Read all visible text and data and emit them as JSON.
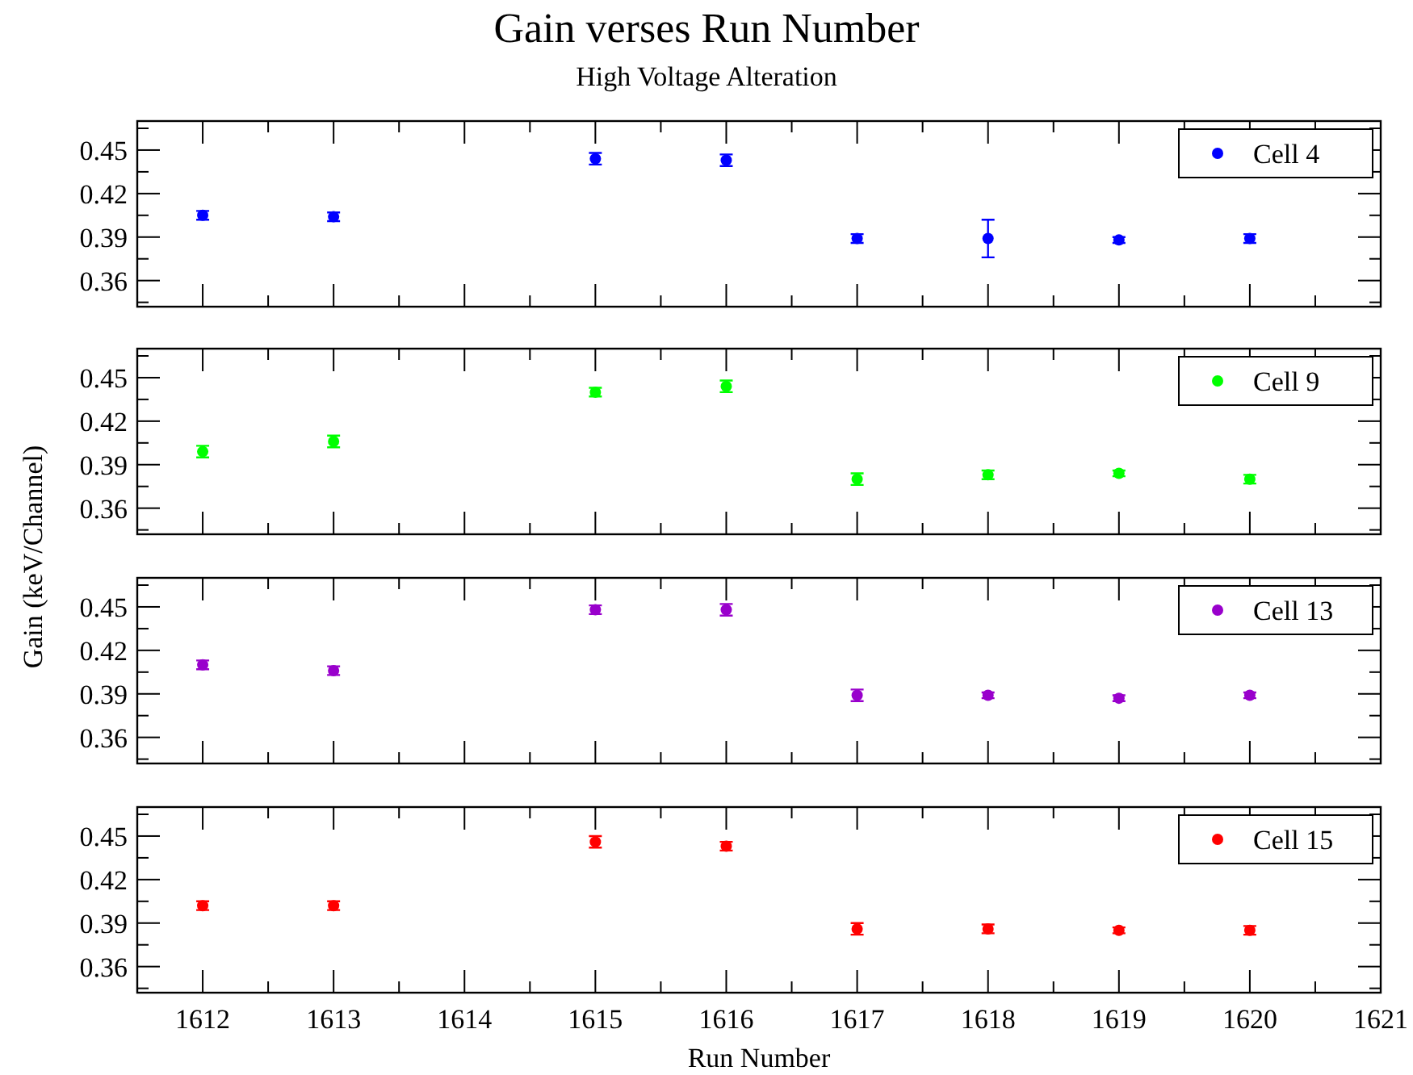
{
  "chart_data": [
    {
      "type": "scatter",
      "title": "Gain verses Run Number",
      "subtitle": "High Voltage Alteration",
      "x": [
        1612,
        1613,
        1615,
        1616,
        1617,
        1618,
        1619,
        1620
      ],
      "xlim": [
        1611.5,
        1621
      ],
      "xticks": [
        1612,
        1613,
        1614,
        1615,
        1616,
        1617,
        1618,
        1619,
        1620,
        1621
      ],
      "ylim": [
        0.342,
        0.47
      ],
      "yticks": [
        0.36,
        0.39,
        0.42,
        0.45
      ],
      "tick_labels": "y",
      "legend": "top right",
      "marker": "circle",
      "series": [
        {
          "name": "Cell 4",
          "color": "#0000ff",
          "values": [
            0.405,
            0.404,
            0.444,
            0.443,
            0.389,
            0.389,
            0.388,
            0.389
          ],
          "errors": [
            0.003,
            0.003,
            0.004,
            0.004,
            0.003,
            0.013,
            0.002,
            0.003
          ]
        }
      ]
    },
    {
      "type": "scatter",
      "x": [
        1612,
        1613,
        1615,
        1616,
        1617,
        1618,
        1619,
        1620
      ],
      "xlim": [
        1611.5,
        1621
      ],
      "xticks": [
        1612,
        1613,
        1614,
        1615,
        1616,
        1617,
        1618,
        1619,
        1620,
        1621
      ],
      "ylim": [
        0.342,
        0.47
      ],
      "yticks": [
        0.36,
        0.39,
        0.42,
        0.45
      ],
      "tick_labels": "y",
      "legend": "top right",
      "marker": "circle",
      "series": [
        {
          "name": "Cell 9",
          "color": "#00ff00",
          "values": [
            0.399,
            0.406,
            0.44,
            0.444,
            0.38,
            0.383,
            0.384,
            0.38
          ],
          "errors": [
            0.004,
            0.004,
            0.003,
            0.004,
            0.004,
            0.003,
            0.002,
            0.003
          ]
        }
      ]
    },
    {
      "type": "scatter",
      "ylabel": "Gain (keV/Channel)",
      "x": [
        1612,
        1613,
        1615,
        1616,
        1617,
        1618,
        1619,
        1620
      ],
      "xlim": [
        1611.5,
        1621
      ],
      "xticks": [
        1612,
        1613,
        1614,
        1615,
        1616,
        1617,
        1618,
        1619,
        1620,
        1621
      ],
      "ylim": [
        0.342,
        0.47
      ],
      "yticks": [
        0.36,
        0.39,
        0.42,
        0.45
      ],
      "tick_labels": "y",
      "legend": "top right",
      "marker": "circle",
      "series": [
        {
          "name": "Cell 13",
          "color": "#9900cc",
          "values": [
            0.41,
            0.406,
            0.448,
            0.448,
            0.389,
            0.389,
            0.387,
            0.389
          ],
          "errors": [
            0.003,
            0.003,
            0.003,
            0.004,
            0.004,
            0.002,
            0.002,
            0.002
          ]
        }
      ]
    },
    {
      "type": "scatter",
      "xlabel": "Run Number",
      "x": [
        1612,
        1613,
        1615,
        1616,
        1617,
        1618,
        1619,
        1620
      ],
      "xlim": [
        1611.5,
        1621
      ],
      "xticks": [
        1612,
        1613,
        1614,
        1615,
        1616,
        1617,
        1618,
        1619,
        1620,
        1621
      ],
      "ylim": [
        0.342,
        0.47
      ],
      "yticks": [
        0.36,
        0.39,
        0.42,
        0.45
      ],
      "legend": "top right",
      "marker": "circle",
      "series": [
        {
          "name": "Cell 15",
          "color": "#ff0000",
          "values": [
            0.402,
            0.402,
            0.446,
            0.443,
            0.386,
            0.386,
            0.385,
            0.385
          ],
          "errors": [
            0.003,
            0.003,
            0.004,
            0.003,
            0.004,
            0.003,
            0.002,
            0.003
          ]
        }
      ]
    }
  ]
}
